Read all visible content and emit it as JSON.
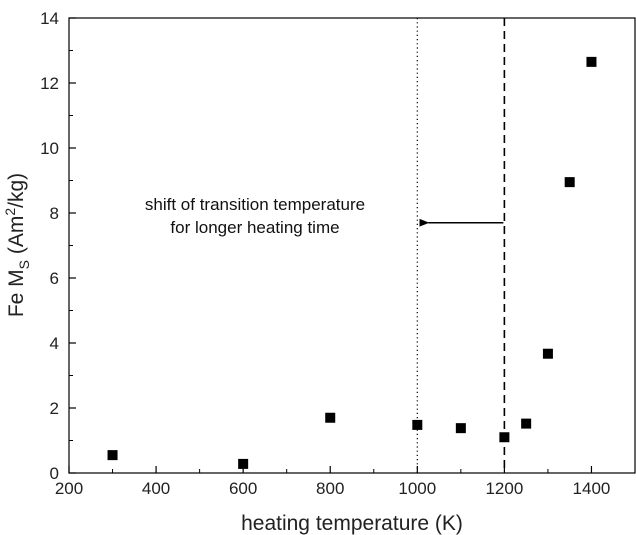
{
  "chart_data": {
    "type": "scatter",
    "title": "",
    "xlabel": "heating temperature (K)",
    "ylabel": {
      "prefix": "Fe M",
      "subscript": "S",
      "unit_open": " (Am",
      "superscript": "2",
      "unit_close": "/kg)"
    },
    "xlim": [
      200,
      1500
    ],
    "ylim": [
      0,
      14
    ],
    "xticks": [
      200,
      400,
      600,
      800,
      1000,
      1200,
      1400
    ],
    "yticks": [
      0,
      2,
      4,
      6,
      8,
      10,
      12,
      14
    ],
    "grid": false,
    "legend": "none",
    "series": [
      {
        "marker": "square",
        "color": "#000000",
        "points": [
          {
            "x": 300,
            "y": 0.55
          },
          {
            "x": 600,
            "y": 0.28
          },
          {
            "x": 800,
            "y": 1.7
          },
          {
            "x": 1000,
            "y": 1.48
          },
          {
            "x": 1100,
            "y": 1.38
          },
          {
            "x": 1200,
            "y": 1.1
          },
          {
            "x": 1250,
            "y": 1.52
          },
          {
            "x": 1300,
            "y": 3.67
          },
          {
            "x": 1350,
            "y": 8.95
          },
          {
            "x": 1400,
            "y": 12.65
          }
        ]
      }
    ],
    "reference_lines": [
      {
        "x": 1000,
        "style": "dotted"
      },
      {
        "x": 1200,
        "style": "dashed"
      }
    ],
    "arrow": {
      "from_x": 1200,
      "to_x": 1000,
      "y": 7.7
    },
    "annotation_lines": [
      "shift of transition temperature",
      "for longer heating time"
    ]
  }
}
